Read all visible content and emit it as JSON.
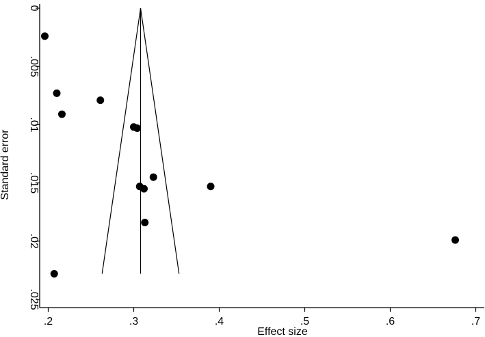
{
  "chart_data": {
    "type": "scatter",
    "title": "",
    "xlabel": "Effect size",
    "ylabel": "Standard error",
    "xlim": [
      0.19,
      0.71
    ],
    "ylim": [
      0,
      0.025
    ],
    "y_inverted": true,
    "grid": false,
    "legend": "none",
    "x_ticks": [
      {
        "value": 0.2,
        "label": ".2"
      },
      {
        "value": 0.3,
        "label": ".3"
      },
      {
        "value": 0.4,
        "label": ".4"
      },
      {
        "value": 0.5,
        "label": ".5"
      },
      {
        "value": 0.6,
        "label": ".6"
      },
      {
        "value": 0.7,
        "label": ".7"
      }
    ],
    "y_ticks": [
      {
        "value": 0,
        "label": "0"
      },
      {
        "value": 0.005,
        "label": ".005"
      },
      {
        "value": 0.01,
        "label": ".01"
      },
      {
        "value": 0.015,
        "label": ".015"
      },
      {
        "value": 0.02,
        "label": ".02"
      },
      {
        "value": 0.025,
        "label": ".025"
      }
    ],
    "points": [
      {
        "x": 0.196,
        "y": 0.0024
      },
      {
        "x": 0.21,
        "y": 0.0073
      },
      {
        "x": 0.216,
        "y": 0.0091
      },
      {
        "x": 0.261,
        "y": 0.0079
      },
      {
        "x": 0.3,
        "y": 0.0102
      },
      {
        "x": 0.304,
        "y": 0.0103
      },
      {
        "x": 0.323,
        "y": 0.0145
      },
      {
        "x": 0.307,
        "y": 0.0153
      },
      {
        "x": 0.312,
        "y": 0.0155
      },
      {
        "x": 0.39,
        "y": 0.0153
      },
      {
        "x": 0.313,
        "y": 0.0184
      },
      {
        "x": 0.676,
        "y": 0.0199
      },
      {
        "x": 0.207,
        "y": 0.0228
      }
    ],
    "pooled_effect": 0.308,
    "funnel": {
      "apex_se": 0,
      "base_se": 0.0228,
      "base_left": 0.263,
      "base_right": 0.353
    },
    "colors": {
      "points": "#000000",
      "lines": "#000000",
      "background": "#ffffff"
    }
  }
}
